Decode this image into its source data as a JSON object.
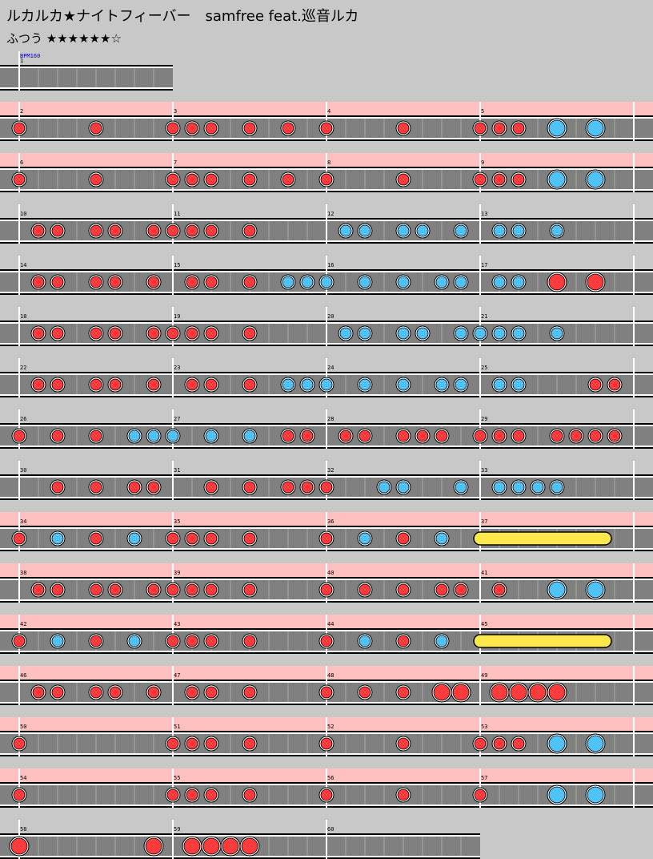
{
  "song": {
    "title": "ルカルカ★ナイトフィーバー　samfree feat.巡音ルカ",
    "difficulty_label": "ふつう ★★★★★★☆"
  },
  "bpm_label": "BPM160",
  "colors": {
    "background": "#c8c8c8",
    "lane": "#808080",
    "pink_band": "#ffc0c0",
    "don": "#ff3b3b",
    "ka": "#4fc3f7",
    "roll": "#ffe84a"
  },
  "note_legend": {
    "d": "don (red, small)",
    "k": "ka (blue, small)",
    "D": "don (red, large)",
    "K": "ka (blue, large)",
    "Y": "drumroll (yellow)"
  },
  "rows": [
    {
      "measures": [
        "1"
      ],
      "pink": false,
      "notes": []
    },
    {
      "measures": [
        "2",
        "3",
        "4",
        "5"
      ],
      "pink": true,
      "notes": [
        [
          0,
          "d"
        ],
        [
          4,
          "d"
        ],
        [
          8,
          "d"
        ],
        [
          9,
          "d"
        ],
        [
          10,
          "d"
        ],
        [
          12,
          "d"
        ],
        [
          14,
          "d"
        ],
        [
          16,
          "d"
        ],
        [
          20,
          "d"
        ],
        [
          24,
          "d"
        ],
        [
          25,
          "d"
        ],
        [
          26,
          "d"
        ],
        [
          28,
          "K"
        ],
        [
          30,
          "K"
        ]
      ]
    },
    {
      "measures": [
        "6",
        "7",
        "8",
        "9"
      ],
      "pink": true,
      "notes": [
        [
          0,
          "d"
        ],
        [
          4,
          "d"
        ],
        [
          8,
          "d"
        ],
        [
          9,
          "d"
        ],
        [
          10,
          "d"
        ],
        [
          12,
          "d"
        ],
        [
          14,
          "d"
        ],
        [
          16,
          "d"
        ],
        [
          20,
          "d"
        ],
        [
          24,
          "d"
        ],
        [
          25,
          "d"
        ],
        [
          26,
          "d"
        ],
        [
          28,
          "K"
        ],
        [
          30,
          "K"
        ]
      ]
    },
    {
      "measures": [
        "10",
        "11",
        "12",
        "13"
      ],
      "pink": false,
      "notes": [
        [
          1,
          "d"
        ],
        [
          2,
          "d"
        ],
        [
          4,
          "d"
        ],
        [
          5,
          "d"
        ],
        [
          7,
          "d"
        ],
        [
          8,
          "d"
        ],
        [
          9,
          "d"
        ],
        [
          10,
          "d"
        ],
        [
          12,
          "d"
        ],
        [
          17,
          "k"
        ],
        [
          18,
          "k"
        ],
        [
          20,
          "k"
        ],
        [
          21,
          "k"
        ],
        [
          23,
          "k"
        ],
        [
          25,
          "k"
        ],
        [
          26,
          "k"
        ],
        [
          28,
          "k"
        ]
      ]
    },
    {
      "measures": [
        "14",
        "15",
        "16",
        "17"
      ],
      "pink": false,
      "notes": [
        [
          1,
          "d"
        ],
        [
          2,
          "d"
        ],
        [
          4,
          "d"
        ],
        [
          5,
          "d"
        ],
        [
          7,
          "d"
        ],
        [
          9,
          "d"
        ],
        [
          10,
          "d"
        ],
        [
          12,
          "d"
        ],
        [
          14,
          "k"
        ],
        [
          15,
          "k"
        ],
        [
          16,
          "k"
        ],
        [
          18,
          "k"
        ],
        [
          20,
          "k"
        ],
        [
          22,
          "k"
        ],
        [
          23,
          "k"
        ],
        [
          25,
          "k"
        ],
        [
          26,
          "k"
        ],
        [
          28,
          "D"
        ],
        [
          30,
          "D"
        ]
      ]
    },
    {
      "measures": [
        "18",
        "19",
        "20",
        "21"
      ],
      "pink": false,
      "notes": [
        [
          1,
          "d"
        ],
        [
          2,
          "d"
        ],
        [
          4,
          "d"
        ],
        [
          5,
          "d"
        ],
        [
          7,
          "d"
        ],
        [
          8,
          "d"
        ],
        [
          9,
          "d"
        ],
        [
          10,
          "d"
        ],
        [
          12,
          "d"
        ],
        [
          17,
          "k"
        ],
        [
          18,
          "k"
        ],
        [
          20,
          "k"
        ],
        [
          21,
          "k"
        ],
        [
          23,
          "k"
        ],
        [
          24,
          "k"
        ],
        [
          25,
          "k"
        ],
        [
          26,
          "k"
        ],
        [
          28,
          "k"
        ]
      ]
    },
    {
      "measures": [
        "22",
        "23",
        "24",
        "25"
      ],
      "pink": false,
      "notes": [
        [
          1,
          "d"
        ],
        [
          2,
          "d"
        ],
        [
          4,
          "d"
        ],
        [
          5,
          "d"
        ],
        [
          7,
          "d"
        ],
        [
          9,
          "d"
        ],
        [
          10,
          "d"
        ],
        [
          12,
          "d"
        ],
        [
          14,
          "k"
        ],
        [
          15,
          "k"
        ],
        [
          16,
          "k"
        ],
        [
          18,
          "k"
        ],
        [
          20,
          "k"
        ],
        [
          22,
          "k"
        ],
        [
          23,
          "k"
        ],
        [
          25,
          "k"
        ],
        [
          26,
          "k"
        ],
        [
          30,
          "d"
        ],
        [
          31,
          "d"
        ]
      ]
    },
    {
      "measures": [
        "26",
        "27",
        "28",
        "29"
      ],
      "pink": false,
      "notes": [
        [
          0,
          "d"
        ],
        [
          2,
          "d"
        ],
        [
          4,
          "d"
        ],
        [
          6,
          "k"
        ],
        [
          7,
          "k"
        ],
        [
          8,
          "k"
        ],
        [
          10,
          "k"
        ],
        [
          12,
          "k"
        ],
        [
          14,
          "d"
        ],
        [
          15,
          "d"
        ],
        [
          17,
          "d"
        ],
        [
          18,
          "d"
        ],
        [
          20,
          "d"
        ],
        [
          21,
          "d"
        ],
        [
          22,
          "d"
        ],
        [
          24,
          "d"
        ],
        [
          25,
          "d"
        ],
        [
          26,
          "d"
        ],
        [
          28,
          "d"
        ],
        [
          29,
          "d"
        ],
        [
          30,
          "d"
        ],
        [
          31,
          "d"
        ]
      ]
    },
    {
      "measures": [
        "30",
        "31",
        "32",
        "33"
      ],
      "pink": false,
      "notes": [
        [
          2,
          "d"
        ],
        [
          4,
          "d"
        ],
        [
          6,
          "d"
        ],
        [
          7,
          "d"
        ],
        [
          10,
          "d"
        ],
        [
          12,
          "d"
        ],
        [
          14,
          "d"
        ],
        [
          15,
          "d"
        ],
        [
          16,
          "d"
        ],
        [
          19,
          "k"
        ],
        [
          20,
          "k"
        ],
        [
          23,
          "k"
        ],
        [
          25,
          "k"
        ],
        [
          26,
          "k"
        ],
        [
          27,
          "k"
        ],
        [
          28,
          "k"
        ]
      ]
    },
    {
      "measures": [
        "34",
        "35",
        "36",
        "37"
      ],
      "pink": true,
      "notes": [
        [
          0,
          "d"
        ],
        [
          2,
          "k"
        ],
        [
          4,
          "d"
        ],
        [
          6,
          "k"
        ],
        [
          8,
          "d"
        ],
        [
          9,
          "d"
        ],
        [
          10,
          "d"
        ],
        [
          12,
          "d"
        ],
        [
          16,
          "d"
        ],
        [
          18,
          "k"
        ],
        [
          20,
          "d"
        ],
        [
          22,
          "k"
        ]
      ],
      "rolls": [
        [
          24,
          30.5
        ]
      ]
    },
    {
      "measures": [
        "38",
        "39",
        "40",
        "41"
      ],
      "pink": true,
      "notes": [
        [
          1,
          "d"
        ],
        [
          2,
          "d"
        ],
        [
          4,
          "d"
        ],
        [
          5,
          "d"
        ],
        [
          7,
          "d"
        ],
        [
          8,
          "d"
        ],
        [
          9,
          "d"
        ],
        [
          10,
          "d"
        ],
        [
          12,
          "d"
        ],
        [
          16,
          "d"
        ],
        [
          18,
          "d"
        ],
        [
          20,
          "d"
        ],
        [
          22,
          "d"
        ],
        [
          23,
          "d"
        ],
        [
          25,
          "d"
        ],
        [
          28,
          "K"
        ],
        [
          30,
          "K"
        ]
      ]
    },
    {
      "measures": [
        "42",
        "43",
        "44",
        "45"
      ],
      "pink": true,
      "notes": [
        [
          0,
          "d"
        ],
        [
          2,
          "k"
        ],
        [
          4,
          "d"
        ],
        [
          6,
          "k"
        ],
        [
          8,
          "d"
        ],
        [
          9,
          "d"
        ],
        [
          10,
          "d"
        ],
        [
          12,
          "d"
        ],
        [
          16,
          "d"
        ],
        [
          18,
          "k"
        ],
        [
          20,
          "d"
        ],
        [
          22,
          "k"
        ]
      ],
      "rolls": [
        [
          24,
          30.5
        ]
      ]
    },
    {
      "measures": [
        "46",
        "47",
        "48",
        "49"
      ],
      "pink": true,
      "notes": [
        [
          1,
          "d"
        ],
        [
          2,
          "d"
        ],
        [
          4,
          "d"
        ],
        [
          5,
          "d"
        ],
        [
          7,
          "d"
        ],
        [
          9,
          "d"
        ],
        [
          10,
          "d"
        ],
        [
          12,
          "d"
        ],
        [
          16,
          "d"
        ],
        [
          18,
          "d"
        ],
        [
          20,
          "d"
        ],
        [
          22,
          "D"
        ],
        [
          23,
          "D"
        ],
        [
          25,
          "D"
        ],
        [
          26,
          "D"
        ],
        [
          27,
          "D"
        ],
        [
          28,
          "D"
        ]
      ]
    },
    {
      "measures": [
        "50",
        "51",
        "52",
        "53"
      ],
      "pink": true,
      "notes": [
        [
          0,
          "d"
        ],
        [
          8,
          "d"
        ],
        [
          9,
          "d"
        ],
        [
          10,
          "d"
        ],
        [
          12,
          "d"
        ],
        [
          16,
          "d"
        ],
        [
          20,
          "d"
        ],
        [
          24,
          "d"
        ],
        [
          25,
          "d"
        ],
        [
          26,
          "d"
        ],
        [
          28,
          "K"
        ],
        [
          30,
          "K"
        ]
      ]
    },
    {
      "measures": [
        "54",
        "55",
        "56",
        "57"
      ],
      "pink": true,
      "notes": [
        [
          0,
          "d"
        ],
        [
          8,
          "d"
        ],
        [
          9,
          "d"
        ],
        [
          10,
          "d"
        ],
        [
          12,
          "d"
        ],
        [
          16,
          "d"
        ],
        [
          20,
          "d"
        ],
        [
          24,
          "d"
        ],
        [
          28,
          "K"
        ],
        [
          30,
          "K"
        ]
      ]
    },
    {
      "measures": [
        "58",
        "59",
        "60"
      ],
      "pink": false,
      "notes": [
        [
          0,
          "D"
        ],
        [
          7,
          "D"
        ],
        [
          9,
          "D"
        ],
        [
          10,
          "D"
        ],
        [
          11,
          "D"
        ],
        [
          12,
          "D"
        ]
      ]
    }
  ]
}
